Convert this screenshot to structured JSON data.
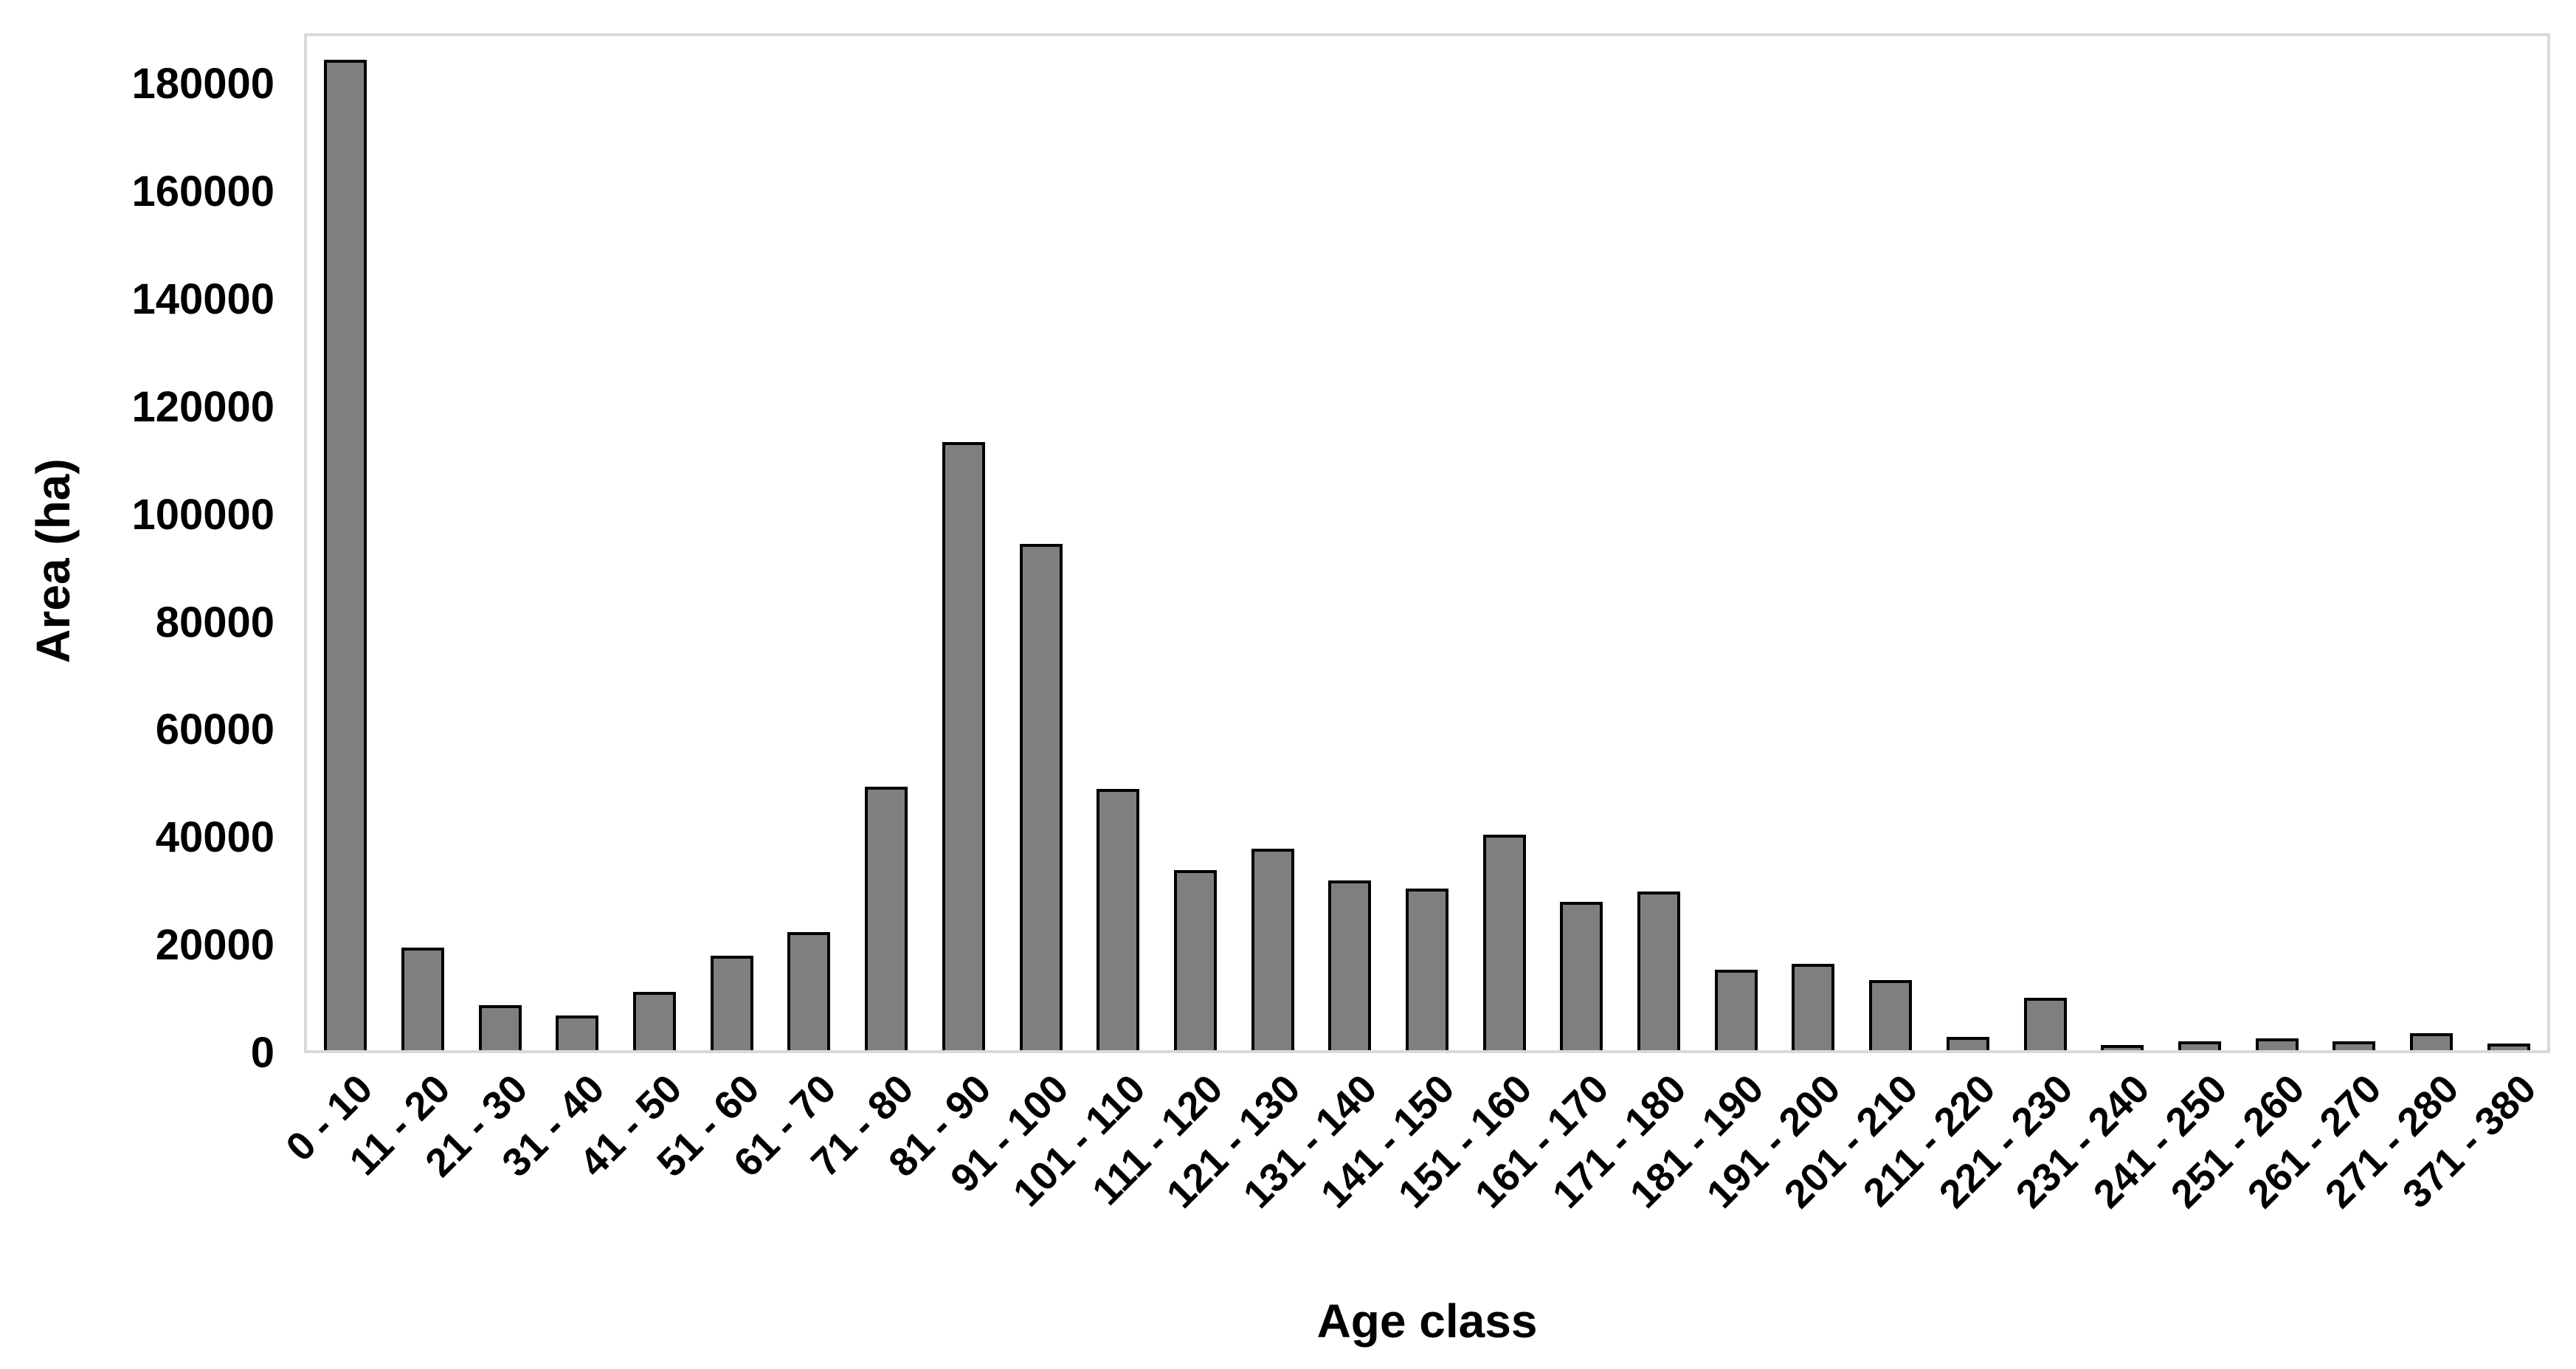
{
  "chart_data": {
    "type": "bar",
    "title": "",
    "xlabel": "Age class",
    "ylabel": "Area (ha)",
    "categories": [
      "0 - 10",
      "11 - 20",
      "21 - 30",
      "31 - 40",
      "41 - 50",
      "51 - 60",
      "61 - 70",
      "71 - 80",
      "81 - 90",
      "91 - 100",
      "101 - 110",
      "111 - 120",
      "121 - 130",
      "131 - 140",
      "141 - 150",
      "151 - 160",
      "161 - 170",
      "171 - 180",
      "181 - 190",
      "191 - 200",
      "201 - 210",
      "211 - 220",
      "221 - 230",
      "231 - 240",
      "241 - 250",
      "251 - 260",
      "261 - 270",
      "271 - 280",
      "371 - 380"
    ],
    "values": [
      184000,
      19000,
      8400,
      6500,
      10800,
      17500,
      22000,
      49000,
      113000,
      94000,
      48500,
      33500,
      37500,
      31500,
      30000,
      40000,
      27500,
      29500,
      15000,
      16000,
      13000,
      2500,
      9800,
      1000,
      1600,
      2200,
      1700,
      3200,
      1300
    ],
    "ylim": [
      0,
      180000
    ],
    "y_tick_step": 20000,
    "y_ticks": [
      0,
      20000,
      40000,
      60000,
      80000,
      100000,
      120000,
      140000,
      160000,
      180000
    ],
    "grid": "off",
    "legend": "none",
    "bar_color": "#7F7F7F",
    "bar_border_color": "#000000",
    "axis_frame_color": "#D9D9D9",
    "text_color": "#000000"
  }
}
